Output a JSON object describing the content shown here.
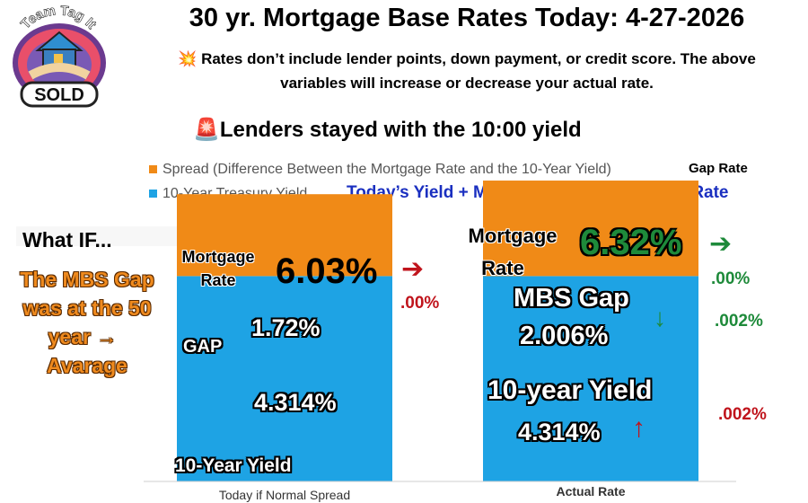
{
  "logo": {
    "top_text": "Team Tag It",
    "badge_text": "SOLD"
  },
  "title": "30 yr. Mortgage Base Rates Today: 4-27-2026",
  "note_icon": "💥",
  "note": "Rates don’t include lender points, down payment, or credit score. The above variables will increase or decrease your actual rate.",
  "headline_icon": "🚨",
  "headline": "Lenders stayed with the 10:00 yield",
  "legend": {
    "spread_label": "Spread (Difference Between the Mortgage Rate and the 10-Year Yield)",
    "treasury_label": "10-Year Treasury Yield",
    "gap_rate_label": "Gap Rate"
  },
  "formula": "Today’s  Yield +  MBS Gap Rate = Mortgage Rate",
  "what_if": {
    "title": "What IF...",
    "lines": [
      "The MBS Gap",
      "was at the 50",
      "year",
      "Avarage"
    ]
  },
  "left_bar": {
    "mortgage_label_line1": "Mortgage",
    "mortgage_label_line2": "Rate",
    "rate": "6.03%",
    "rate_change": ".00%",
    "gap_label": "GAP",
    "gap_value": "1.72%",
    "yield_value": "4.314%",
    "yield_label": "10-Year Yield"
  },
  "right_bar": {
    "mortgage_label_line1": "Mortgage",
    "mortgage_label_line2": "Rate",
    "rate": "6.32%",
    "rate_change": ".00%",
    "gap_label": "MBS Gap",
    "gap_value": "2.006%",
    "gap_change": ".002%",
    "yield_label": "10-year Yield",
    "yield_value": "4.314%",
    "yield_change": ".002%"
  },
  "colors": {
    "spread": "#f08a17",
    "treasury": "#1ea3e4",
    "green": "#1e8a3a",
    "red": "#c0141c",
    "formula": "#1a2fc0"
  },
  "chart_data": {
    "type": "bar",
    "stacked": true,
    "categories": [
      "Today if Normal Spread",
      "Actual Rate"
    ],
    "series": [
      {
        "name": "10-Year Treasury Yield",
        "values": [
          4.314,
          4.314
        ]
      },
      {
        "name": "Spread (Difference Between the Mortgage Rate and the 10-Year Yield)",
        "values": [
          1.72,
          2.006
        ]
      }
    ],
    "totals": [
      6.03,
      6.32
    ],
    "legend_position": "top-left",
    "grid": false
  }
}
